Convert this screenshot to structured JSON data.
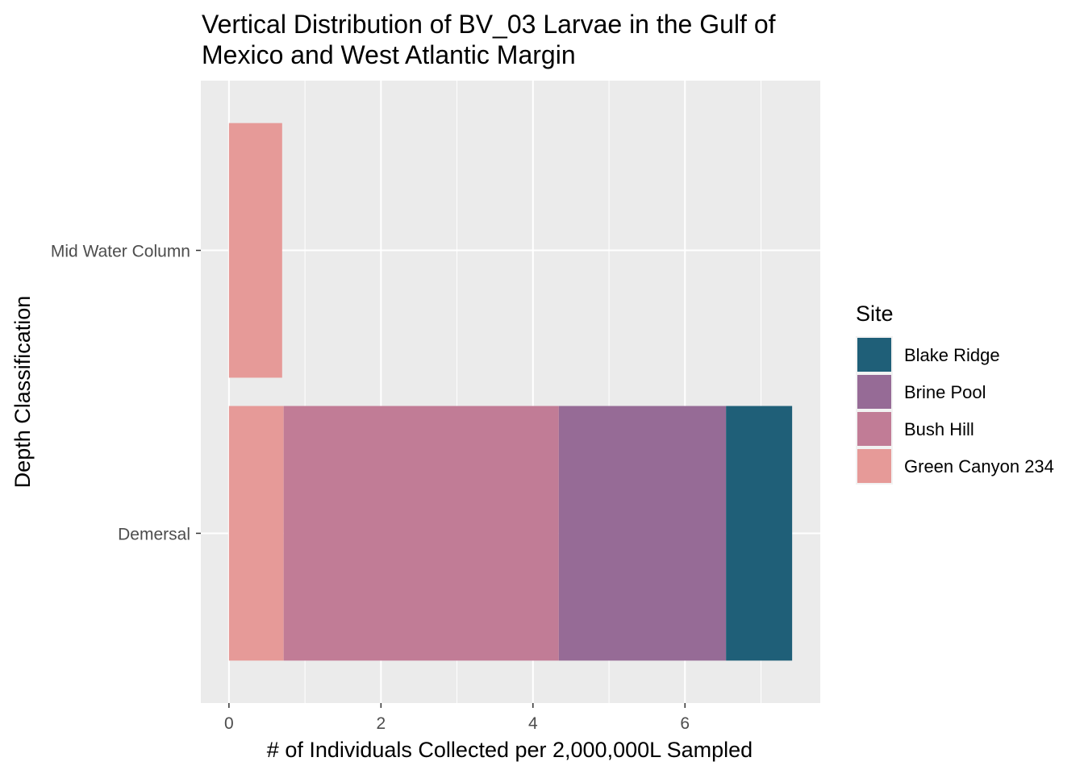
{
  "chart_data": {
    "type": "bar",
    "orientation": "horizontal",
    "stacked": true,
    "title": "Vertical Distribution of BV_03 Larvae in the Gulf of Mexico and West Atlantic Margin",
    "title_lines": [
      "Vertical Distribution of BV_03 Larvae in the Gulf of",
      "Mexico and West Atlantic Margin"
    ],
    "xlabel": "# of Individuals Collected per 2,000,000L Sampled",
    "ylabel": "Depth Classification",
    "xlim": [
      -0.37,
      7.78
    ],
    "xticks": [
      0,
      2,
      4,
      6
    ],
    "xtick_labels": [
      "0",
      "2",
      "4",
      "6"
    ],
    "categories": [
      "Mid Water Column",
      "Demersal"
    ],
    "grid": true,
    "legend": {
      "title": "Site",
      "position": "right"
    },
    "series": [
      {
        "name": "Green Canyon 234",
        "color": "#E69A98",
        "values": [
          0.7,
          0.72
        ]
      },
      {
        "name": "Bush Hill",
        "color": "#C17C96",
        "values": [
          0,
          3.62
        ]
      },
      {
        "name": "Brine Pool",
        "color": "#966B96",
        "values": [
          0,
          2.2
        ]
      },
      {
        "name": "Blake Ridge",
        "color": "#1F5F78",
        "values": [
          0,
          0.87
        ]
      }
    ],
    "legend_order": [
      "Blake Ridge",
      "Brine Pool",
      "Bush Hill",
      "Green Canyon 234"
    ]
  }
}
